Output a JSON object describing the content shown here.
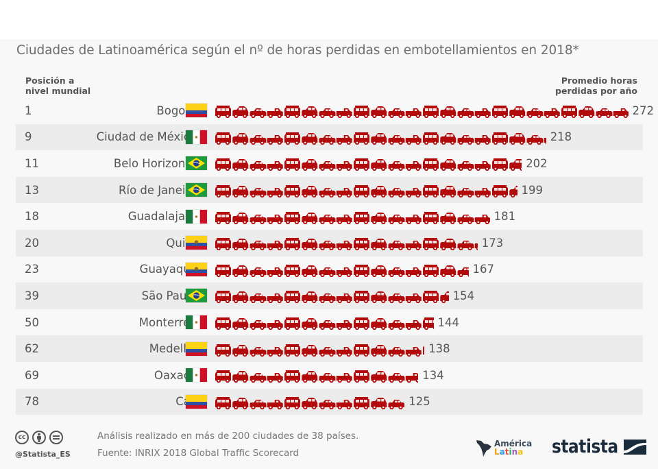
{
  "chart_data": {
    "type": "bar",
    "title": "Ciudades de Latinoamérica según el nº de horas perdidas en embotellamientos en 2018*",
    "xlabel": "Promedio horas perdidas por año",
    "ylabel": "Posición a nivel mundial",
    "categories": [
      "Bogotá",
      "Ciudad de México",
      "Belo Horizonte",
      "Río de Janeiro",
      "Guadalajara",
      "Quito",
      "Guayaquil",
      "São Paulo",
      "Monterrey",
      "Medellín",
      "Oaxaca",
      "Cali"
    ],
    "values": [
      272,
      218,
      202,
      199,
      181,
      173,
      167,
      154,
      144,
      138,
      134,
      125
    ],
    "world_rank": [
      1,
      9,
      11,
      13,
      18,
      20,
      23,
      39,
      50,
      62,
      69,
      78
    ],
    "country": [
      "Colombia",
      "México",
      "Brasil",
      "Brasil",
      "México",
      "Ecuador",
      "Ecuador",
      "Brasil",
      "México",
      "Colombia",
      "México",
      "Colombia"
    ],
    "xlim": [
      0,
      272
    ],
    "grid": false,
    "legend": "none",
    "pictogram": "car-icons"
  },
  "header": {
    "left_line1": "Posición a",
    "left_line2": "nivel mundial",
    "right_line1": "Promedio horas",
    "right_line2": "perdidas por año"
  },
  "rows": [
    {
      "rank": "1",
      "city": "Bogotá",
      "flag": "colombia",
      "value": 272
    },
    {
      "rank": "9",
      "city": "Ciudad de México",
      "flag": "mexico",
      "value": 218
    },
    {
      "rank": "11",
      "city": "Belo Horizonte",
      "flag": "brazil",
      "value": 202
    },
    {
      "rank": "13",
      "city": "Río de Janeiro",
      "flag": "brazil",
      "value": 199
    },
    {
      "rank": "18",
      "city": "Guadalajara",
      "flag": "mexico",
      "value": 181
    },
    {
      "rank": "20",
      "city": "Quito",
      "flag": "ecuador",
      "value": 173
    },
    {
      "rank": "23",
      "city": "Guayaquil",
      "flag": "ecuador",
      "value": 167
    },
    {
      "rank": "39",
      "city": "São Paulo",
      "flag": "brazil",
      "value": 154
    },
    {
      "rank": "50",
      "city": "Monterrey",
      "flag": "mexico",
      "value": 144
    },
    {
      "rank": "62",
      "city": "Medellín",
      "flag": "colombia",
      "value": 138
    },
    {
      "rank": "69",
      "city": "Oaxaca",
      "flag": "mexico",
      "value": 134
    },
    {
      "rank": "78",
      "city": "Cali",
      "flag": "colombia",
      "value": 125
    }
  ],
  "footer": {
    "note": "Análisis realizado en más de 200 ciudades de 38 países.",
    "source": "Fuente: INRIX 2018 Global Traffic Scorecard",
    "handle": "@Statista_ES",
    "license_icons": [
      "cc-icon",
      "by-icon",
      "nd-icon"
    ],
    "cc_label": "cc",
    "partner_line1": "América",
    "partner_line2": "Latina",
    "brand": "statista"
  },
  "colors": {
    "car": "#b30b0b",
    "text": "#555555",
    "title": "#6e6e6e",
    "row_alt": "#ececec",
    "background": "#f8f8f8",
    "brand": "#1a2b3c"
  }
}
